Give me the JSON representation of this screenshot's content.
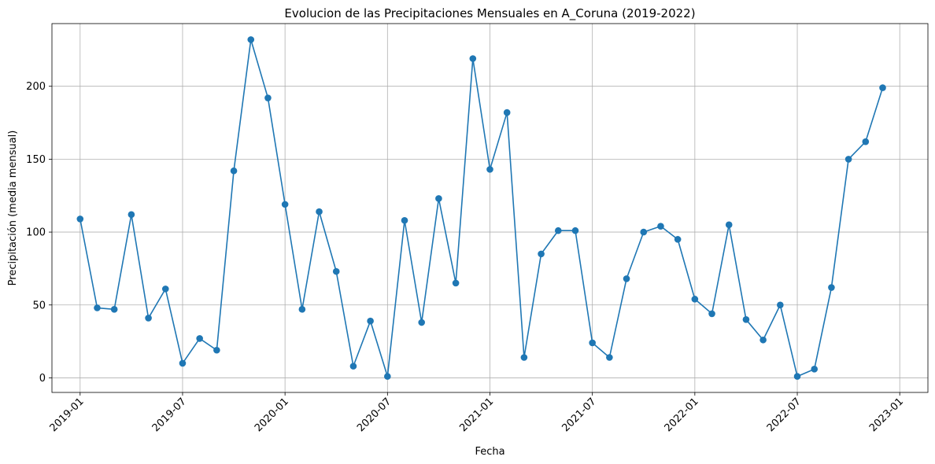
{
  "chart_data": {
    "type": "line",
    "title": "Evolucion de las Precipitaciones Mensuales en A_Coruna (2019-2022)",
    "xlabel": "Fecha",
    "ylabel": "Precipitación (media mensual)",
    "grid": true,
    "x_start": "2019-01",
    "x_ticks": [
      {
        "label": "2019-01",
        "month_index": 0
      },
      {
        "label": "2019-07",
        "month_index": 6
      },
      {
        "label": "2020-01",
        "month_index": 12
      },
      {
        "label": "2020-07",
        "month_index": 18
      },
      {
        "label": "2021-01",
        "month_index": 24
      },
      {
        "label": "2021-07",
        "month_index": 30
      },
      {
        "label": "2022-01",
        "month_index": 36
      },
      {
        "label": "2022-07",
        "month_index": 42
      },
      {
        "label": "2023-01",
        "month_index": 48
      }
    ],
    "y_ticks": [
      0,
      50,
      100,
      150,
      200
    ],
    "xlim": [
      -1.65,
      49.65
    ],
    "ylim": [
      -10,
      243
    ],
    "series": [
      {
        "name": "Precipitación",
        "color": "#1f77b4",
        "values": [
          109,
          48,
          47,
          112,
          41,
          61,
          10,
          27,
          19,
          142,
          232,
          192,
          119,
          47,
          114,
          73,
          8,
          39,
          1,
          108,
          38,
          123,
          65,
          219,
          143,
          182,
          14,
          85,
          101,
          101,
          24,
          14,
          68,
          100,
          104,
          95,
          54,
          44,
          105,
          40,
          26,
          50,
          1,
          6,
          62,
          150,
          162,
          199
        ]
      }
    ]
  }
}
